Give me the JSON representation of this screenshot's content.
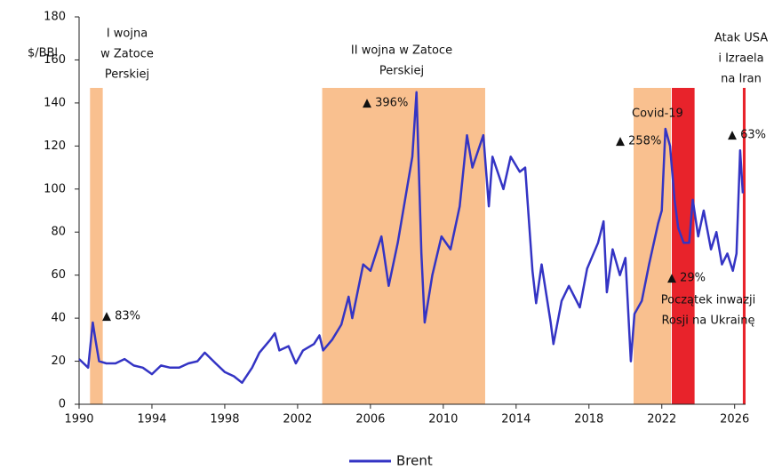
{
  "chart_data": {
    "type": "line",
    "y_label": "$/BBl",
    "x": [
      1990.0,
      1990.5,
      1990.75,
      1990.9,
      1991.1,
      1991.5,
      1992,
      1992.5,
      1993,
      1993.5,
      1994,
      1994.5,
      1995,
      1995.5,
      1996,
      1996.5,
      1996.9,
      1997.5,
      1998,
      1998.5,
      1998.95,
      1999.5,
      1999.9,
      2000.5,
      2000.75,
      2001,
      2001.5,
      2001.9,
      2002.3,
      2002.9,
      2003.2,
      2003.4,
      2003.9,
      2004.4,
      2004.8,
      2005.0,
      2005.6,
      2006.0,
      2006.6,
      2007.0,
      2007.5,
      2007.9,
      2008.3,
      2008.53,
      2008.8,
      2008.98,
      2009.4,
      2009.9,
      2010.4,
      2010.9,
      2011.3,
      2011.6,
      2012.2,
      2012.5,
      2012.7,
      2013.3,
      2013.7,
      2014.2,
      2014.5,
      2014.9,
      2015.1,
      2015.4,
      2015.9,
      2016.05,
      2016.5,
      2016.9,
      2017.5,
      2017.9,
      2018.5,
      2018.8,
      2018.98,
      2019.3,
      2019.7,
      2020.0,
      2020.3,
      2020.5,
      2020.9,
      2021.3,
      2021.8,
      2022.0,
      2022.2,
      2022.45,
      2022.7,
      2022.9,
      2023.2,
      2023.5,
      2023.7,
      2024.0,
      2024.3,
      2024.7,
      2025.0,
      2025.3,
      2025.6,
      2025.9,
      2026.1,
      2026.3,
      2026.45
    ],
    "series": [
      {
        "name": "Brent",
        "color": "#3434c4",
        "values": [
          21,
          17,
          38,
          30,
          20,
          19,
          19,
          21,
          18,
          17,
          14,
          18,
          17,
          17,
          19,
          20,
          24,
          19,
          15,
          13,
          10,
          17,
          24,
          30,
          33,
          25,
          27,
          19,
          25,
          28,
          32,
          25,
          30,
          37,
          50,
          40,
          65,
          62,
          78,
          55,
          75,
          95,
          115,
          145,
          70,
          38,
          60,
          78,
          72,
          92,
          125,
          110,
          125,
          92,
          115,
          100,
          115,
          108,
          110,
          62,
          47,
          65,
          38,
          28,
          48,
          55,
          45,
          63,
          75,
          85,
          52,
          72,
          60,
          68,
          20,
          42,
          48,
          65,
          84,
          90,
          128,
          120,
          95,
          82,
          75,
          75,
          95,
          78,
          90,
          72,
          80,
          65,
          70,
          62,
          70,
          118,
          98
        ]
      }
    ],
    "xlim": [
      1990,
      2026.6
    ],
    "ylim": [
      0,
      180
    ],
    "xticks": [
      1990,
      1994,
      1998,
      2002,
      2006,
      2010,
      2014,
      2018,
      2022,
      2026
    ],
    "yticks": [
      0,
      20,
      40,
      60,
      80,
      100,
      120,
      140,
      160,
      180
    ],
    "shaded_periods": [
      {
        "start": 1990.6,
        "end": 1991.3,
        "color": "#f9c08f"
      },
      {
        "start": 2003.35,
        "end": 2012.3,
        "color": "#f9c08f"
      },
      {
        "start": 2020.45,
        "end": 2022.5,
        "color": "#f9c08f"
      },
      {
        "start": 2022.55,
        "end": 2023.8,
        "color": "#e8232b"
      },
      {
        "start": 2026.45,
        "end": 2026.6,
        "color": "#e8232b"
      }
    ],
    "annotations": [
      [
        "I wojna",
        "w Zatoce",
        "Perskiej"
      ],
      [
        "II wojna w Zatoce",
        "Perskiej"
      ],
      [
        "▲ 396%"
      ],
      [
        "▲ 83%"
      ],
      [
        "Covid-19"
      ],
      [
        "▲ 258%"
      ],
      [
        "▲ 29%"
      ],
      [
        "Początek inwazji",
        "Rosji na Ukrainę"
      ],
      [
        "Atak USA",
        "i Izraela",
        "na Iran"
      ],
      [
        "▲ 63%"
      ]
    ]
  }
}
